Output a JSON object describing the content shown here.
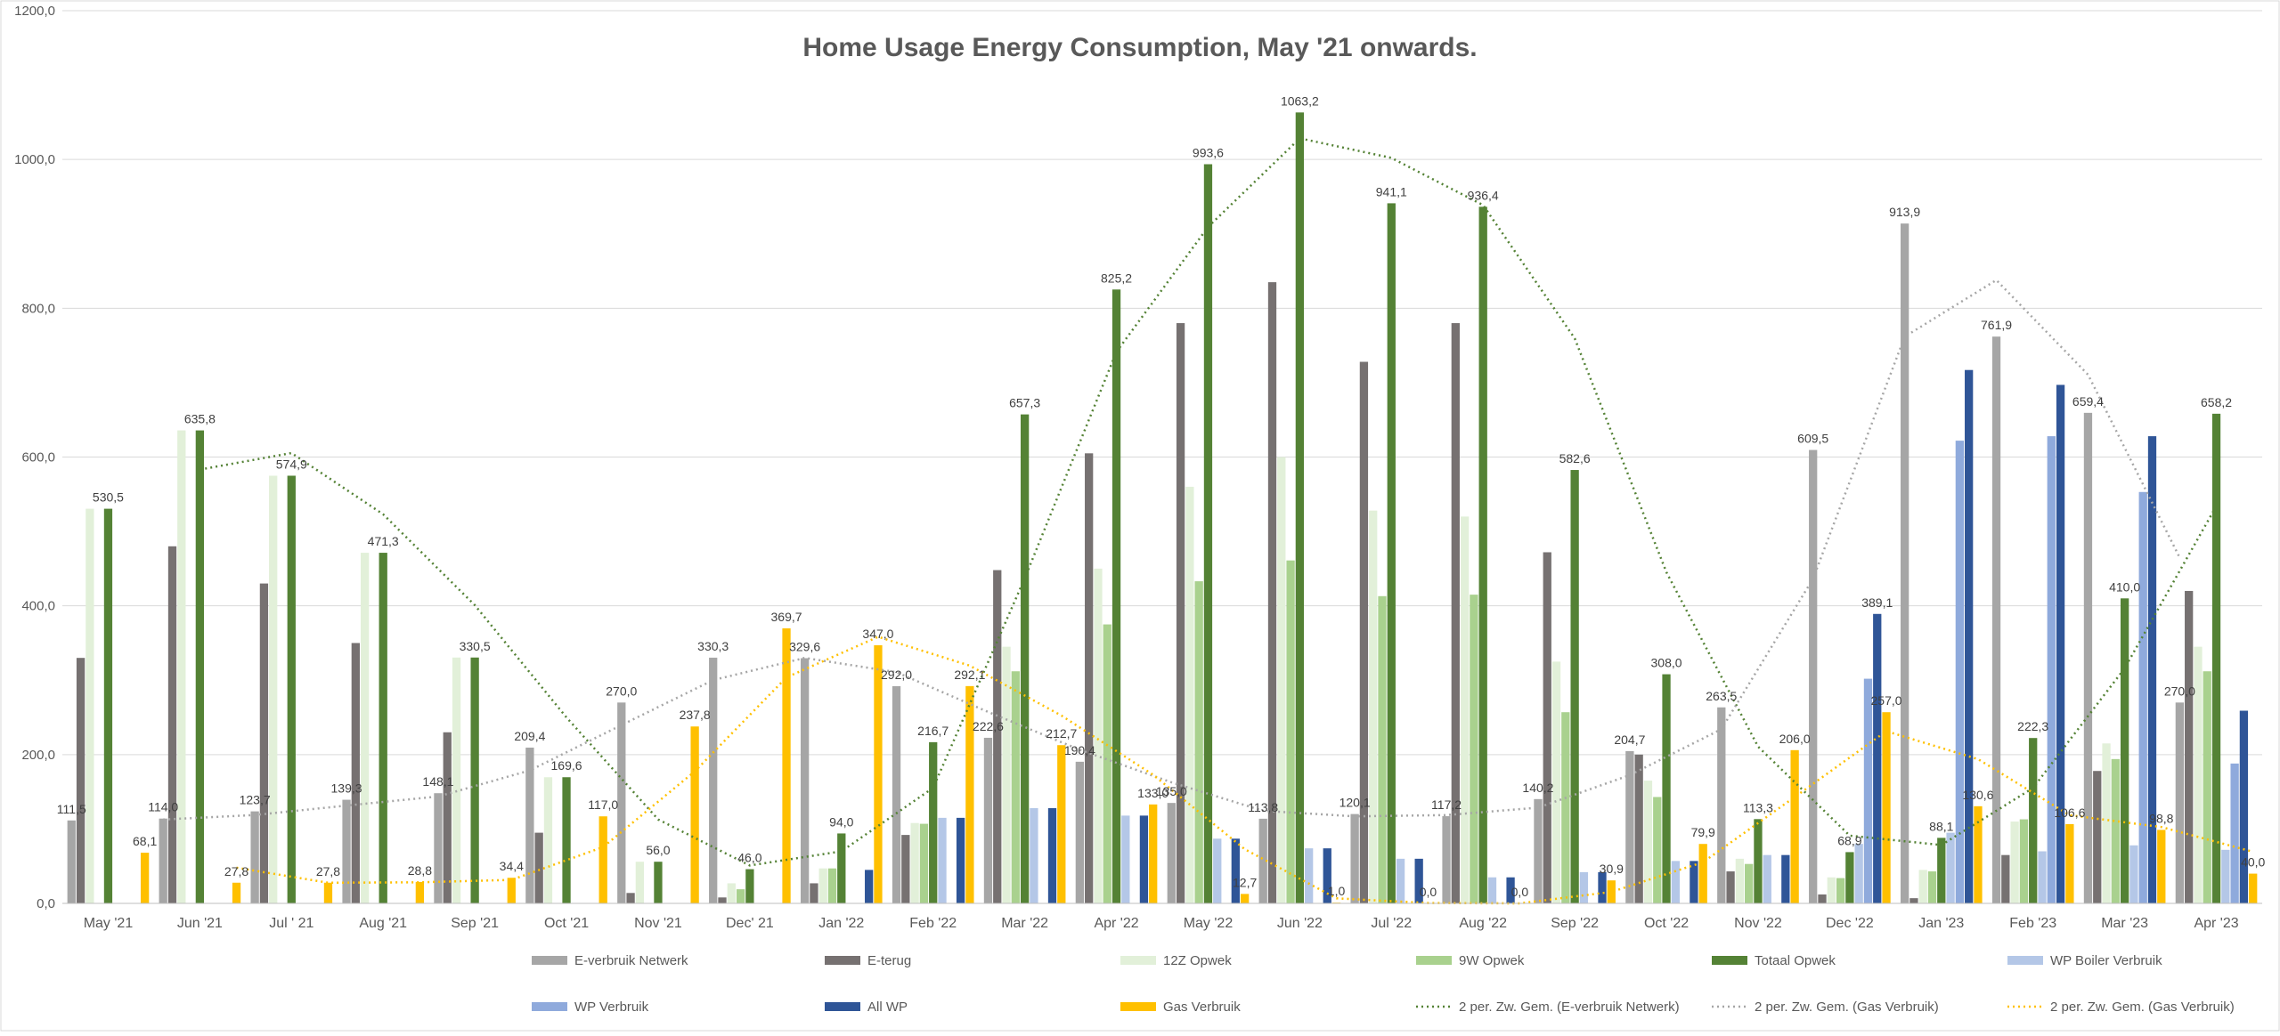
{
  "chart_data": {
    "type": "bar",
    "title": "Home Usage Energy Consumption, May '21 onwards.",
    "xlabel": "",
    "ylabel": "",
    "ylim": [
      0,
      1200
    ],
    "yticks": [
      "0,0",
      "200,0",
      "400,0",
      "600,0",
      "800,0",
      "1000,0",
      "1200,0"
    ],
    "grid": true,
    "legend_position": "bottom",
    "categories": [
      "May '21",
      "Jun '21",
      "Jul ' 21",
      "Aug '21",
      "Sep '21",
      "Oct '21",
      "Nov '21",
      "Dec' 21",
      "Jan '22",
      "Feb '22",
      "Mar '22",
      "Apr '22",
      "May '22",
      "Jun '22",
      "Jul '22",
      "Aug '22",
      "Sep '22",
      "Oct '22",
      "Nov '22",
      "Dec '22",
      "Jan '23",
      "Feb '23",
      "Mar '23",
      "Apr '23"
    ],
    "series": [
      {
        "name": "E-verbruik Netwerk",
        "color": "#a6a6a6",
        "values": [
          111.5,
          114.0,
          123.7,
          139.3,
          148.1,
          209.4,
          270.0,
          330.3,
          329.6,
          292.0,
          222.6,
          190.4,
          135.0,
          113.8,
          120.1,
          117.2,
          140.2,
          204.7,
          263.5,
          609.5,
          913.9,
          761.9,
          659.4,
          270.0
        ],
        "labels": [
          "111,5",
          "114,0",
          "123,7",
          "139,3",
          "148,1",
          "209,4",
          "270,0",
          "330,3",
          "329,6",
          "292,0",
          "222,6",
          "190,4",
          "135,0",
          "113,8",
          "120,1",
          "117,2",
          "140,2",
          "204,7",
          "263,5",
          "609,5",
          "913,9",
          "761,9",
          "659,4",
          "270,0"
        ]
      },
      {
        "name": "E-terug",
        "color": "#767171",
        "values": [
          330,
          480,
          430,
          350,
          230,
          95,
          14,
          8,
          27,
          92,
          448,
          605,
          780,
          835,
          728,
          780,
          472,
          200,
          43,
          12,
          7,
          65,
          178,
          420
        ],
        "labels": []
      },
      {
        "name": "12Z Opwek",
        "color": "#e2f0d9",
        "values": [
          530.5,
          635.8,
          574.9,
          471.3,
          330.5,
          169.6,
          56.0,
          27,
          47,
          108,
          345,
          450,
          560,
          600,
          528,
          520,
          325,
          165,
          60,
          35,
          45,
          110,
          215,
          345
        ],
        "labels": []
      },
      {
        "name": "9W Opwek",
        "color": "#a9d18e",
        "values": [
          0,
          0,
          0,
          0,
          0,
          0,
          0,
          19,
          47,
          107,
          312,
          375,
          433,
          461,
          413,
          415,
          257,
          143,
          53,
          34,
          43,
          113,
          194,
          312
        ],
        "labels": []
      },
      {
        "name": "Totaal Opwek",
        "color": "#548235",
        "values": [
          530.5,
          635.8,
          574.9,
          471.3,
          330.5,
          169.6,
          56.0,
          46.0,
          94.0,
          216.7,
          657.3,
          825.2,
          993.6,
          1063.2,
          941.1,
          936.4,
          582.6,
          308.0,
          113.3,
          68.9,
          88.1,
          222.3,
          410.0,
          658.2
        ],
        "labels": [
          "530,5",
          "635,8",
          "574,9",
          "471,3",
          "330,5",
          "169,6",
          "56,0",
          "46,0",
          "94,0",
          "216,7",
          "657,3",
          "825,2",
          "993,6",
          "1063,2",
          "941,1",
          "936,4",
          "582,6",
          "308,0",
          "113,3",
          "68,9",
          "88,1",
          "222,3",
          "410,0",
          "658,2"
        ]
      },
      {
        "name": "WP Boiler Verbruik",
        "color": "#b4c7e7",
        "values": [
          0,
          0,
          0,
          0,
          0,
          0,
          0,
          0,
          0,
          115,
          128,
          118,
          87,
          74,
          60,
          35,
          42,
          57,
          65,
          80,
          95,
          70,
          78,
          72
        ],
        "labels": []
      },
      {
        "name": "WP Verbruik",
        "color": "#8faadc",
        "values": [
          0,
          0,
          0,
          0,
          0,
          0,
          0,
          0,
          0,
          0,
          0,
          0,
          0,
          0,
          0,
          0,
          0,
          0,
          0,
          302,
          622,
          628,
          553,
          188
        ],
        "labels": []
      },
      {
        "name": "All WP",
        "color": "#2f5597",
        "values": [
          0,
          0,
          0,
          0,
          0,
          0,
          0,
          0,
          45,
          115,
          128,
          118,
          87,
          74,
          60,
          35,
          42,
          57,
          65,
          389.1,
          717,
          697,
          628,
          259
        ],
        "labels": [
          "",
          "",
          "",
          "",
          "",
          "",
          "",
          "",
          "",
          "",
          "",
          "",
          "",
          "",
          "",
          "",
          "",
          "",
          "",
          "389,1",
          "",
          "",
          "",
          ""
        ]
      },
      {
        "name": "Gas Verbruik",
        "color": "#ffc000",
        "values": [
          68.1,
          27.8,
          27.8,
          28.8,
          34.4,
          117.0,
          237.8,
          369.7,
          347.0,
          292.1,
          212.7,
          133.0,
          12.7,
          1.0,
          0.0,
          0.0,
          30.9,
          79.9,
          206.0,
          257.0,
          130.6,
          106.6,
          98.8,
          40.0
        ],
        "labels": [
          "68,1",
          "27,8",
          "27,8",
          "28,8",
          "34,4",
          "117,0",
          "237,8",
          "369,7",
          "347,0",
          "292,1",
          "212,7",
          "133,0",
          "12,7",
          "1,0",
          "0,0",
          "0,0",
          "30,9",
          "79,9",
          "206,0",
          "257,0",
          "130,6",
          "106,6",
          "98,8",
          "40,0"
        ]
      }
    ],
    "trendlines": [
      {
        "name": "2 per. Zw. Gem. (E-verbruik Netwerk)",
        "color": "#548235",
        "dash": "2,4",
        "series_index": 4
      },
      {
        "name": "2 per. Zw. Gem. (Gas Verbruik)",
        "color": "#a6a6a6",
        "dash": "2,4",
        "series_index": 0
      },
      {
        "name": "2 per. Zw. Gem. (Gas Verbruik)",
        "color": "#ffc000",
        "dash": "2,4",
        "series_index": 8
      }
    ]
  }
}
